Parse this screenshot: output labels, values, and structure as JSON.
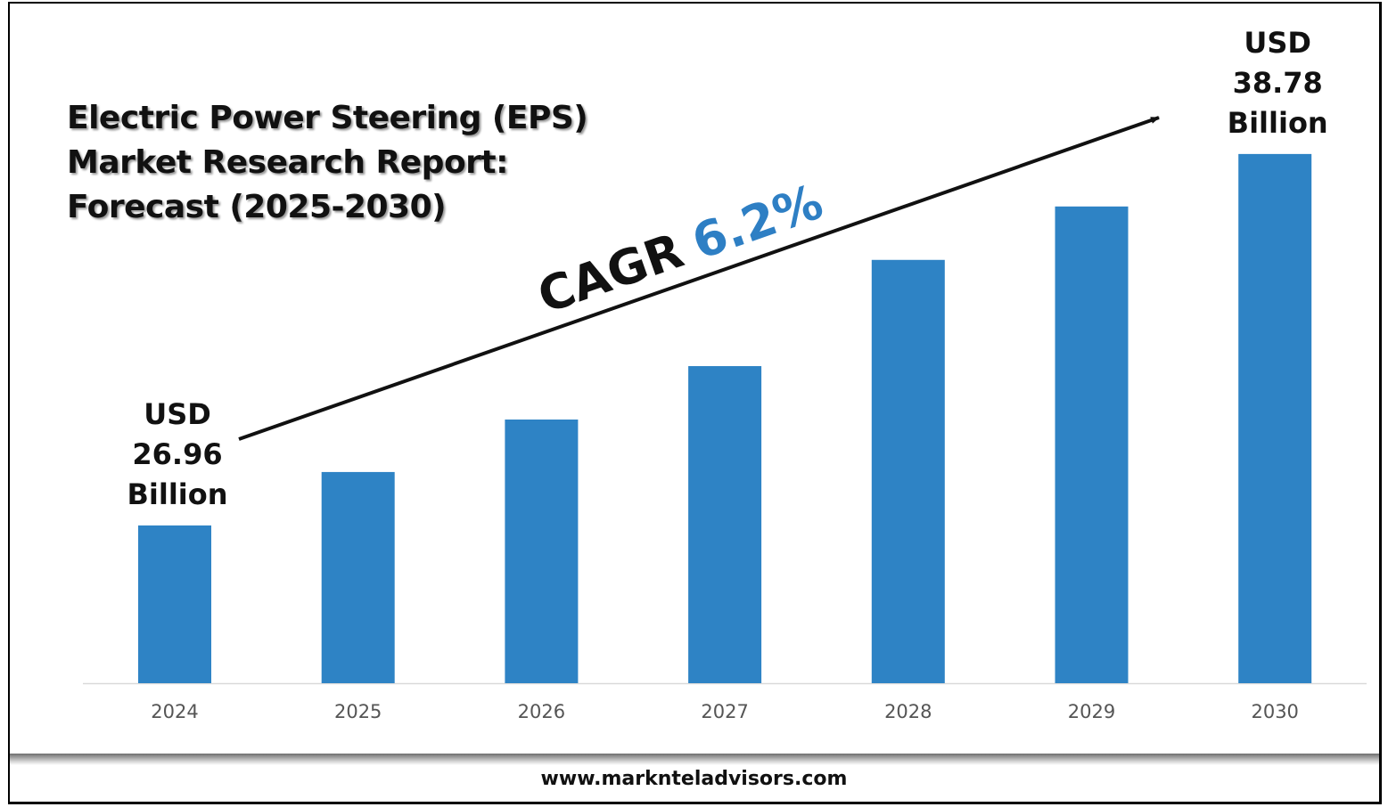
{
  "title_lines": [
    "Electric Power Steering (EPS)",
    "Market Research Report:",
    "Forecast (2025-2030)"
  ],
  "footer": "www.marknteladvisors.com",
  "cagr": {
    "label": "CAGR",
    "value": "6.2%",
    "value_color": "#2e7fc4"
  },
  "chart_data": {
    "type": "bar",
    "categories": [
      "2024",
      "2025",
      "2026",
      "2027",
      "2028",
      "2029",
      "2030"
    ],
    "values": [
      26.96,
      28.66,
      30.33,
      32.03,
      35.41,
      37.11,
      38.78
    ],
    "unit": "USD Billion",
    "bar_color": "#2e83c5",
    "grid": false,
    "annotations": [
      {
        "category": "2024",
        "lines": [
          "USD",
          "26.96",
          "Billion"
        ]
      },
      {
        "category": "2030",
        "lines": [
          "USD",
          "38.78",
          "Billion"
        ]
      }
    ]
  }
}
